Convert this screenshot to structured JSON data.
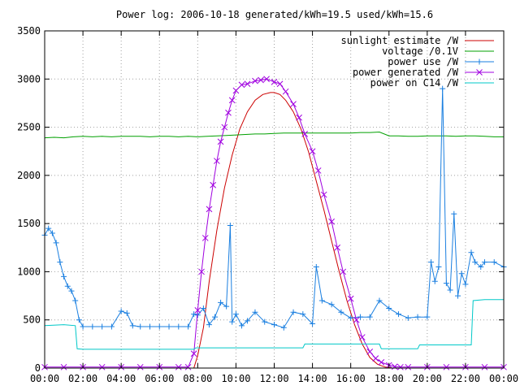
{
  "chart_data": {
    "type": "line",
    "title": "Power log: 2006-10-18 generated/kWh=19.5 used/kWh=15.6",
    "xlabel": "",
    "ylabel": "",
    "xlim": [
      0,
      24
    ],
    "ylim": [
      0,
      3500
    ],
    "grid": true,
    "legend_position": "top-right",
    "x_ticks": [
      0,
      2,
      4,
      6,
      8,
      10,
      12,
      14,
      16,
      18,
      20,
      22,
      24
    ],
    "x_tick_labels": [
      "00:00",
      "02:00",
      "04:00",
      "06:00",
      "08:00",
      "10:00",
      "12:00",
      "14:00",
      "16:00",
      "18:00",
      "20:00",
      "22:00",
      "00:00"
    ],
    "y_ticks": [
      0,
      500,
      1000,
      1500,
      2000,
      2500,
      3000,
      3500
    ],
    "y_tick_labels": [
      "0",
      "500",
      "1000",
      "1500",
      "2000",
      "2500",
      "3000",
      "3500"
    ],
    "series": [
      {
        "name": "sunlight estimate /W",
        "color": "#cc0000",
        "style": "line",
        "x": [
          7.8,
          8.0,
          8.3,
          8.6,
          9.0,
          9.4,
          9.8,
          10.2,
          10.6,
          11.0,
          11.4,
          11.8,
          12.0,
          12.3,
          12.6,
          13.0,
          13.4,
          13.8,
          14.2,
          14.6,
          15.0,
          15.4,
          15.8,
          16.2,
          16.6,
          17.0,
          17.4,
          17.8,
          18.2
        ],
        "y": [
          0,
          130,
          420,
          900,
          1430,
          1870,
          2210,
          2480,
          2660,
          2780,
          2840,
          2860,
          2860,
          2840,
          2780,
          2660,
          2480,
          2240,
          1940,
          1640,
          1320,
          1000,
          700,
          450,
          250,
          110,
          40,
          10,
          0
        ]
      },
      {
        "name": "voltage /0.1V",
        "color": "#00a000",
        "style": "line",
        "x": [
          0.0,
          0.5,
          1.0,
          1.5,
          2.0,
          2.5,
          3.0,
          3.5,
          4.0,
          4.5,
          5.0,
          5.5,
          6.0,
          6.5,
          7.0,
          7.5,
          8.0,
          8.5,
          9.0,
          9.5,
          10.0,
          10.5,
          11.0,
          11.5,
          12.0,
          12.5,
          13.0,
          13.5,
          14.0,
          14.5,
          15.0,
          15.5,
          16.0,
          16.5,
          17.0,
          17.5,
          18.0,
          18.5,
          19.0,
          19.5,
          20.0,
          20.5,
          21.0,
          21.5,
          22.0,
          22.5,
          23.0,
          23.5,
          24.0
        ],
        "y": [
          2390,
          2395,
          2390,
          2400,
          2405,
          2400,
          2405,
          2400,
          2405,
          2405,
          2405,
          2400,
          2405,
          2405,
          2400,
          2405,
          2400,
          2405,
          2410,
          2415,
          2420,
          2425,
          2430,
          2430,
          2435,
          2440,
          2440,
          2440,
          2440,
          2440,
          2440,
          2440,
          2440,
          2445,
          2445,
          2450,
          2410,
          2410,
          2405,
          2405,
          2410,
          2410,
          2410,
          2405,
          2410,
          2410,
          2405,
          2400,
          2400
        ]
      },
      {
        "name": "power use /W",
        "color": "#1a7fe0",
        "style": "linepoints",
        "marker": "plus",
        "x": [
          0.0,
          0.2,
          0.4,
          0.6,
          0.8,
          1.0,
          1.2,
          1.4,
          1.6,
          1.8,
          2.0,
          2.5,
          3.0,
          3.5,
          4.0,
          4.3,
          4.6,
          5.0,
          5.5,
          6.0,
          6.5,
          7.0,
          7.5,
          7.8,
          8.0,
          8.3,
          8.6,
          8.9,
          9.2,
          9.5,
          9.7,
          9.8,
          10.0,
          10.3,
          10.6,
          11.0,
          11.5,
          12.0,
          12.5,
          13.0,
          13.5,
          14.0,
          14.2,
          14.5,
          15.0,
          15.5,
          16.0,
          16.5,
          17.0,
          17.5,
          18.0,
          18.5,
          19.0,
          19.5,
          20.0,
          20.2,
          20.4,
          20.6,
          20.8,
          21.0,
          21.2,
          21.4,
          21.6,
          21.8,
          22.0,
          22.3,
          22.5,
          22.8,
          23.0,
          23.5,
          24.0
        ],
        "y": [
          1380,
          1450,
          1400,
          1300,
          1100,
          950,
          850,
          800,
          700,
          500,
          430,
          430,
          430,
          430,
          590,
          570,
          440,
          430,
          430,
          430,
          430,
          430,
          430,
          560,
          550,
          620,
          450,
          530,
          680,
          640,
          1480,
          480,
          560,
          440,
          490,
          580,
          480,
          450,
          420,
          580,
          560,
          460,
          1050,
          700,
          660,
          580,
          520,
          530,
          530,
          700,
          620,
          560,
          520,
          530,
          530,
          1100,
          900,
          1050,
          2900,
          880,
          810,
          1600,
          750,
          980,
          870,
          1200,
          1100,
          1050,
          1100,
          1100,
          1050
        ]
      },
      {
        "name": "power generated /W",
        "color": "#a000e0",
        "style": "linepoints",
        "marker": "cross",
        "x": [
          0.0,
          1.0,
          2.0,
          3.0,
          4.0,
          5.0,
          6.0,
          7.0,
          7.5,
          7.8,
          8.0,
          8.2,
          8.4,
          8.6,
          8.8,
          9.0,
          9.2,
          9.4,
          9.6,
          9.8,
          10.0,
          10.3,
          10.6,
          11.0,
          11.3,
          11.6,
          12.0,
          12.3,
          12.6,
          13.0,
          13.3,
          13.6,
          14.0,
          14.3,
          14.6,
          15.0,
          15.3,
          15.6,
          16.0,
          16.3,
          16.6,
          17.0,
          17.3,
          17.6,
          18.0,
          18.3,
          18.6,
          19.0,
          20.0,
          21.0,
          22.0,
          23.0,
          24.0
        ],
        "y": [
          10,
          10,
          10,
          10,
          10,
          10,
          10,
          10,
          10,
          150,
          600,
          1000,
          1350,
          1650,
          1900,
          2150,
          2350,
          2500,
          2650,
          2780,
          2880,
          2940,
          2950,
          2980,
          2990,
          3000,
          2970,
          2950,
          2870,
          2740,
          2600,
          2430,
          2250,
          2050,
          1800,
          1520,
          1250,
          1000,
          720,
          500,
          320,
          170,
          100,
          60,
          30,
          15,
          10,
          10,
          10,
          10,
          10,
          10,
          10
        ]
      },
      {
        "name": "power on C14 /W",
        "color": "#00c8c8",
        "style": "line",
        "x": [
          0.0,
          1.0,
          1.6,
          1.7,
          2.0,
          4.0,
          6.0,
          7.0,
          7.8,
          7.9,
          10.0,
          12.0,
          13.5,
          13.6,
          16.0,
          17.5,
          17.6,
          19.0,
          19.5,
          19.6,
          21.0,
          22.3,
          22.4,
          23.0,
          24.0
        ],
        "y": [
          440,
          450,
          440,
          200,
          195,
          195,
          195,
          195,
          195,
          210,
          210,
          210,
          210,
          250,
          250,
          250,
          200,
          200,
          200,
          240,
          240,
          240,
          700,
          710,
          710
        ]
      }
    ]
  }
}
